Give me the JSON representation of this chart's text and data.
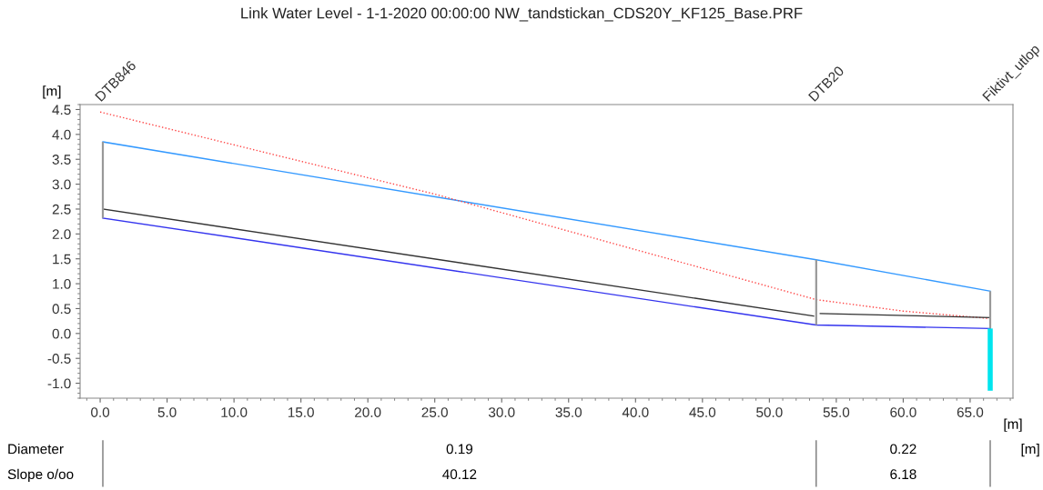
{
  "chart_data": {
    "type": "line",
    "title": "Link Water Level - 1-1-2020 00:00:00 NW_tandstickan_CDS20Y_KF125_Base.PRF",
    "xlabel": "[m]",
    "ylabel": "[m]",
    "xlim": [
      -1.5,
      68.2
    ],
    "ylim": [
      -1.3,
      4.6
    ],
    "xticks": [
      {
        "value": 0,
        "label": "0.0"
      },
      {
        "value": 5,
        "label": "5.0"
      },
      {
        "value": 10,
        "label": "10.0"
      },
      {
        "value": 15,
        "label": "15.0"
      },
      {
        "value": 20,
        "label": "20.0"
      },
      {
        "value": 25,
        "label": "25.0"
      },
      {
        "value": 30,
        "label": "30.0"
      },
      {
        "value": 35,
        "label": "35.0"
      },
      {
        "value": 40,
        "label": "40.0"
      },
      {
        "value": 45,
        "label": "45.0"
      },
      {
        "value": 50,
        "label": "50.0"
      },
      {
        "value": 55,
        "label": "55.0"
      },
      {
        "value": 60,
        "label": "60.0"
      },
      {
        "value": 65,
        "label": "65.0"
      }
    ],
    "yticks": [
      {
        "value": -1.0,
        "label": "-1.0"
      },
      {
        "value": -0.5,
        "label": "-0.5"
      },
      {
        "value": 0,
        "label": "0.0"
      },
      {
        "value": 0.5,
        "label": "0.5"
      },
      {
        "value": 1.0,
        "label": "1.0"
      },
      {
        "value": 1.5,
        "label": "1.5"
      },
      {
        "value": 2.0,
        "label": "2.0"
      },
      {
        "value": 2.5,
        "label": "2.5"
      },
      {
        "value": 3.0,
        "label": "3.0"
      },
      {
        "value": 3.5,
        "label": "3.5"
      },
      {
        "value": 4.0,
        "label": "4.0"
      },
      {
        "value": 4.5,
        "label": "4.5"
      }
    ],
    "grid": false,
    "series": [
      {
        "color": "#3399ff",
        "x": [
          0.2,
          53.5,
          66.5
        ],
        "values": [
          3.85,
          1.48,
          0.85
        ]
      },
      {
        "color": "#ff4444",
        "line_style": "dotted",
        "x": [
          0.0,
          25.0,
          53.5,
          60.0,
          66.5
        ],
        "values": [
          4.45,
          2.8,
          0.68,
          0.45,
          0.3
        ]
      },
      {
        "color": "#333333",
        "x": [
          0.2,
          53.3,
          null,
          53.8,
          66.5
        ],
        "values": [
          2.5,
          0.35,
          null,
          0.4,
          0.32
        ]
      },
      {
        "color": "#3333ee",
        "x": [
          0.2,
          53.5,
          66.5
        ],
        "values": [
          2.32,
          0.17,
          0.1
        ]
      },
      {
        "color": "#999999",
        "x": [
          0.2,
          0.2
        ],
        "values": [
          2.32,
          3.85
        ],
        "type": "step"
      },
      {
        "color": "#999999",
        "x": [
          53.5,
          53.5
        ],
        "values": [
          0.17,
          1.48
        ],
        "type": "step"
      },
      {
        "color": "#999999",
        "x": [
          66.5,
          66.5
        ],
        "values": [
          0.1,
          0.85
        ],
        "type": "step"
      },
      {
        "color": "#00e5ee",
        "x": [
          66.5,
          66.5
        ],
        "values": [
          -1.15,
          0.1
        ],
        "type": "step"
      }
    ],
    "annotations": [
      "DTB846",
      "DTB20",
      "Fiktivt_utlop",
      "Diameter",
      "0.19",
      "0.22",
      "[m]",
      "Slope o/oo",
      "40.12",
      "6.18"
    ]
  }
}
